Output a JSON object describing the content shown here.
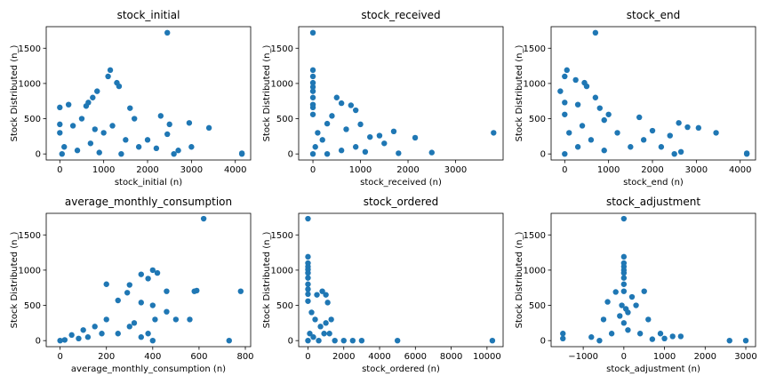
{
  "chart_data": [
    {
      "type": "scatter",
      "title": "stock_initial",
      "xlabel": "stock_initial (n)",
      "ylabel": "Stock Distributed (n_)",
      "color": "#1f77b4",
      "xlim": [
        -310,
        4350
      ],
      "ylim": [
        -86,
        1806
      ],
      "xticks": [
        0,
        1000,
        2000,
        3000,
        4000
      ],
      "yticks": [
        0,
        500,
        1000,
        1500
      ],
      "x": [
        2450,
        1150,
        1100,
        1300,
        1350,
        850,
        750,
        650,
        200,
        0,
        600,
        1600,
        2300,
        2950,
        2500,
        3400,
        2450,
        1700,
        4150,
        4150,
        2700,
        3000,
        2000,
        0,
        0,
        500,
        1000,
        1200,
        300,
        800,
        1500,
        100,
        400,
        700,
        1800,
        2200,
        50,
        900,
        1400,
        2600
      ],
      "values": [
        1720,
        1190,
        1100,
        1010,
        960,
        890,
        800,
        730,
        700,
        660,
        680,
        650,
        540,
        440,
        420,
        370,
        280,
        500,
        0,
        10,
        50,
        100,
        200,
        420,
        300,
        500,
        300,
        400,
        400,
        350,
        200,
        100,
        50,
        150,
        100,
        80,
        0,
        20,
        0,
        0
      ]
    },
    {
      "type": "scatter",
      "title": "stock_received",
      "xlabel": "stock_received (n)",
      "ylabel": "Stock Distributed (n_)",
      "color": "#1f77b4",
      "xlim": [
        -300,
        4000
      ],
      "ylim": [
        -86,
        1806
      ],
      "xticks": [
        0,
        1000,
        2000,
        3000
      ],
      "yticks": [
        0,
        500,
        1000,
        1500
      ],
      "x": [
        0,
        0,
        0,
        0,
        0,
        0,
        0,
        0,
        0,
        0,
        500,
        600,
        800,
        900,
        400,
        300,
        1000,
        1700,
        2150,
        1400,
        1200,
        3800,
        2500,
        1800,
        1500,
        100,
        200,
        700,
        900,
        0,
        300,
        600,
        1100,
        50
      ],
      "values": [
        1720,
        1190,
        1100,
        1010,
        950,
        890,
        800,
        700,
        660,
        560,
        800,
        720,
        690,
        620,
        540,
        430,
        420,
        320,
        230,
        260,
        240,
        300,
        20,
        10,
        150,
        300,
        200,
        350,
        100,
        0,
        0,
        50,
        30,
        100
      ]
    },
    {
      "type": "scatter",
      "title": "stock_end",
      "xlabel": "stock_end (n)",
      "ylabel": "Stock Distributed (n_)",
      "color": "#1f77b4",
      "xlim": [
        -310,
        4350
      ],
      "ylim": [
        -86,
        1806
      ],
      "xticks": [
        0,
        1000,
        2000,
        3000,
        4000
      ],
      "yticks": [
        0,
        500,
        1000,
        1500
      ],
      "x": [
        700,
        50,
        0,
        250,
        450,
        500,
        -100,
        700,
        0,
        300,
        800,
        1000,
        1700,
        0,
        900,
        2000,
        2600,
        2800,
        3050,
        3450,
        2400,
        1800,
        2200,
        2650,
        4150,
        4150,
        1500,
        1200,
        400,
        600,
        100,
        0,
        300,
        900,
        2500
      ],
      "values": [
        1720,
        1190,
        1100,
        1050,
        1010,
        960,
        890,
        800,
        730,
        700,
        650,
        560,
        520,
        560,
        480,
        330,
        440,
        380,
        370,
        300,
        260,
        200,
        100,
        30,
        0,
        10,
        100,
        300,
        400,
        200,
        300,
        0,
        100,
        50,
        0
      ]
    },
    {
      "type": "scatter",
      "title": "average_monthly_consumption",
      "xlabel": "average_monthly_consumption (n)",
      "ylabel": "Stock Distributed (n_)",
      "color": "#1f77b4",
      "xlim": [
        -60,
        823
      ],
      "ylim": [
        -86,
        1806
      ],
      "xticks": [
        0,
        200,
        400,
        600,
        800
      ],
      "yticks": [
        0,
        500,
        1000,
        1500
      ],
      "x": [
        620,
        400,
        420,
        350,
        380,
        200,
        300,
        460,
        290,
        580,
        590,
        780,
        250,
        350,
        400,
        460,
        500,
        560,
        410,
        380,
        730,
        300,
        200,
        150,
        100,
        50,
        0,
        20,
        120,
        250,
        320,
        180,
        80,
        400,
        350
      ],
      "values": [
        1730,
        1000,
        960,
        940,
        880,
        800,
        790,
        700,
        680,
        700,
        710,
        700,
        570,
        540,
        500,
        410,
        300,
        300,
        300,
        100,
        0,
        200,
        300,
        200,
        150,
        80,
        0,
        10,
        50,
        100,
        250,
        100,
        30,
        0,
        50
      ]
    },
    {
      "type": "scatter",
      "title": "stock_ordered",
      "xlabel": "stock_ordered (n)",
      "ylabel": "Stock Distributed (n_)",
      "color": "#1f77b4",
      "xlim": [
        -520,
        10900
      ],
      "ylim": [
        -86,
        1806
      ],
      "xticks": [
        0,
        2000,
        4000,
        6000,
        8000,
        10000
      ],
      "yticks": [
        0,
        500,
        1000,
        1500
      ],
      "x": [
        0,
        0,
        0,
        0,
        0,
        0,
        0,
        0,
        0,
        0,
        0,
        800,
        1000,
        500,
        1100,
        1300,
        1500,
        2000,
        2500,
        3000,
        5000,
        10300,
        200,
        400,
        700,
        900,
        100,
        0,
        300,
        600,
        1200,
        1000
      ],
      "values": [
        1730,
        1190,
        1100,
        1050,
        1010,
        960,
        890,
        800,
        730,
        660,
        560,
        700,
        650,
        650,
        540,
        300,
        0,
        0,
        0,
        0,
        0,
        0,
        400,
        300,
        200,
        100,
        100,
        0,
        50,
        0,
        100,
        250
      ]
    },
    {
      "type": "scatter",
      "title": "stock_adjustment",
      "xlabel": "stock_adjustment (n)",
      "ylabel": "Stock Distributed (n_)",
      "color": "#1f77b4",
      "xlim": [
        -1790,
        3240
      ],
      "ylim": [
        -86,
        1806
      ],
      "xticks": [
        {
          "value": -1000,
          "label": "−1000"
        },
        0,
        1000,
        2000,
        3000
      ],
      "yticks": [
        0,
        500,
        1000,
        1500
      ],
      "x": [
        0,
        0,
        0,
        0,
        0,
        0,
        0,
        0,
        0,
        500,
        -200,
        200,
        -400,
        300,
        100,
        -100,
        -500,
        600,
        -1500,
        -1500,
        2600,
        3000,
        1400,
        1200,
        900,
        1000,
        -800,
        -300,
        400,
        700,
        -600,
        100,
        0,
        -50,
        50
      ],
      "values": [
        1730,
        1190,
        1100,
        1050,
        1000,
        960,
        890,
        800,
        700,
        700,
        690,
        620,
        550,
        500,
        400,
        350,
        300,
        300,
        100,
        30,
        0,
        0,
        60,
        60,
        100,
        30,
        50,
        100,
        100,
        20,
        0,
        150,
        250,
        500,
        450
      ]
    }
  ]
}
